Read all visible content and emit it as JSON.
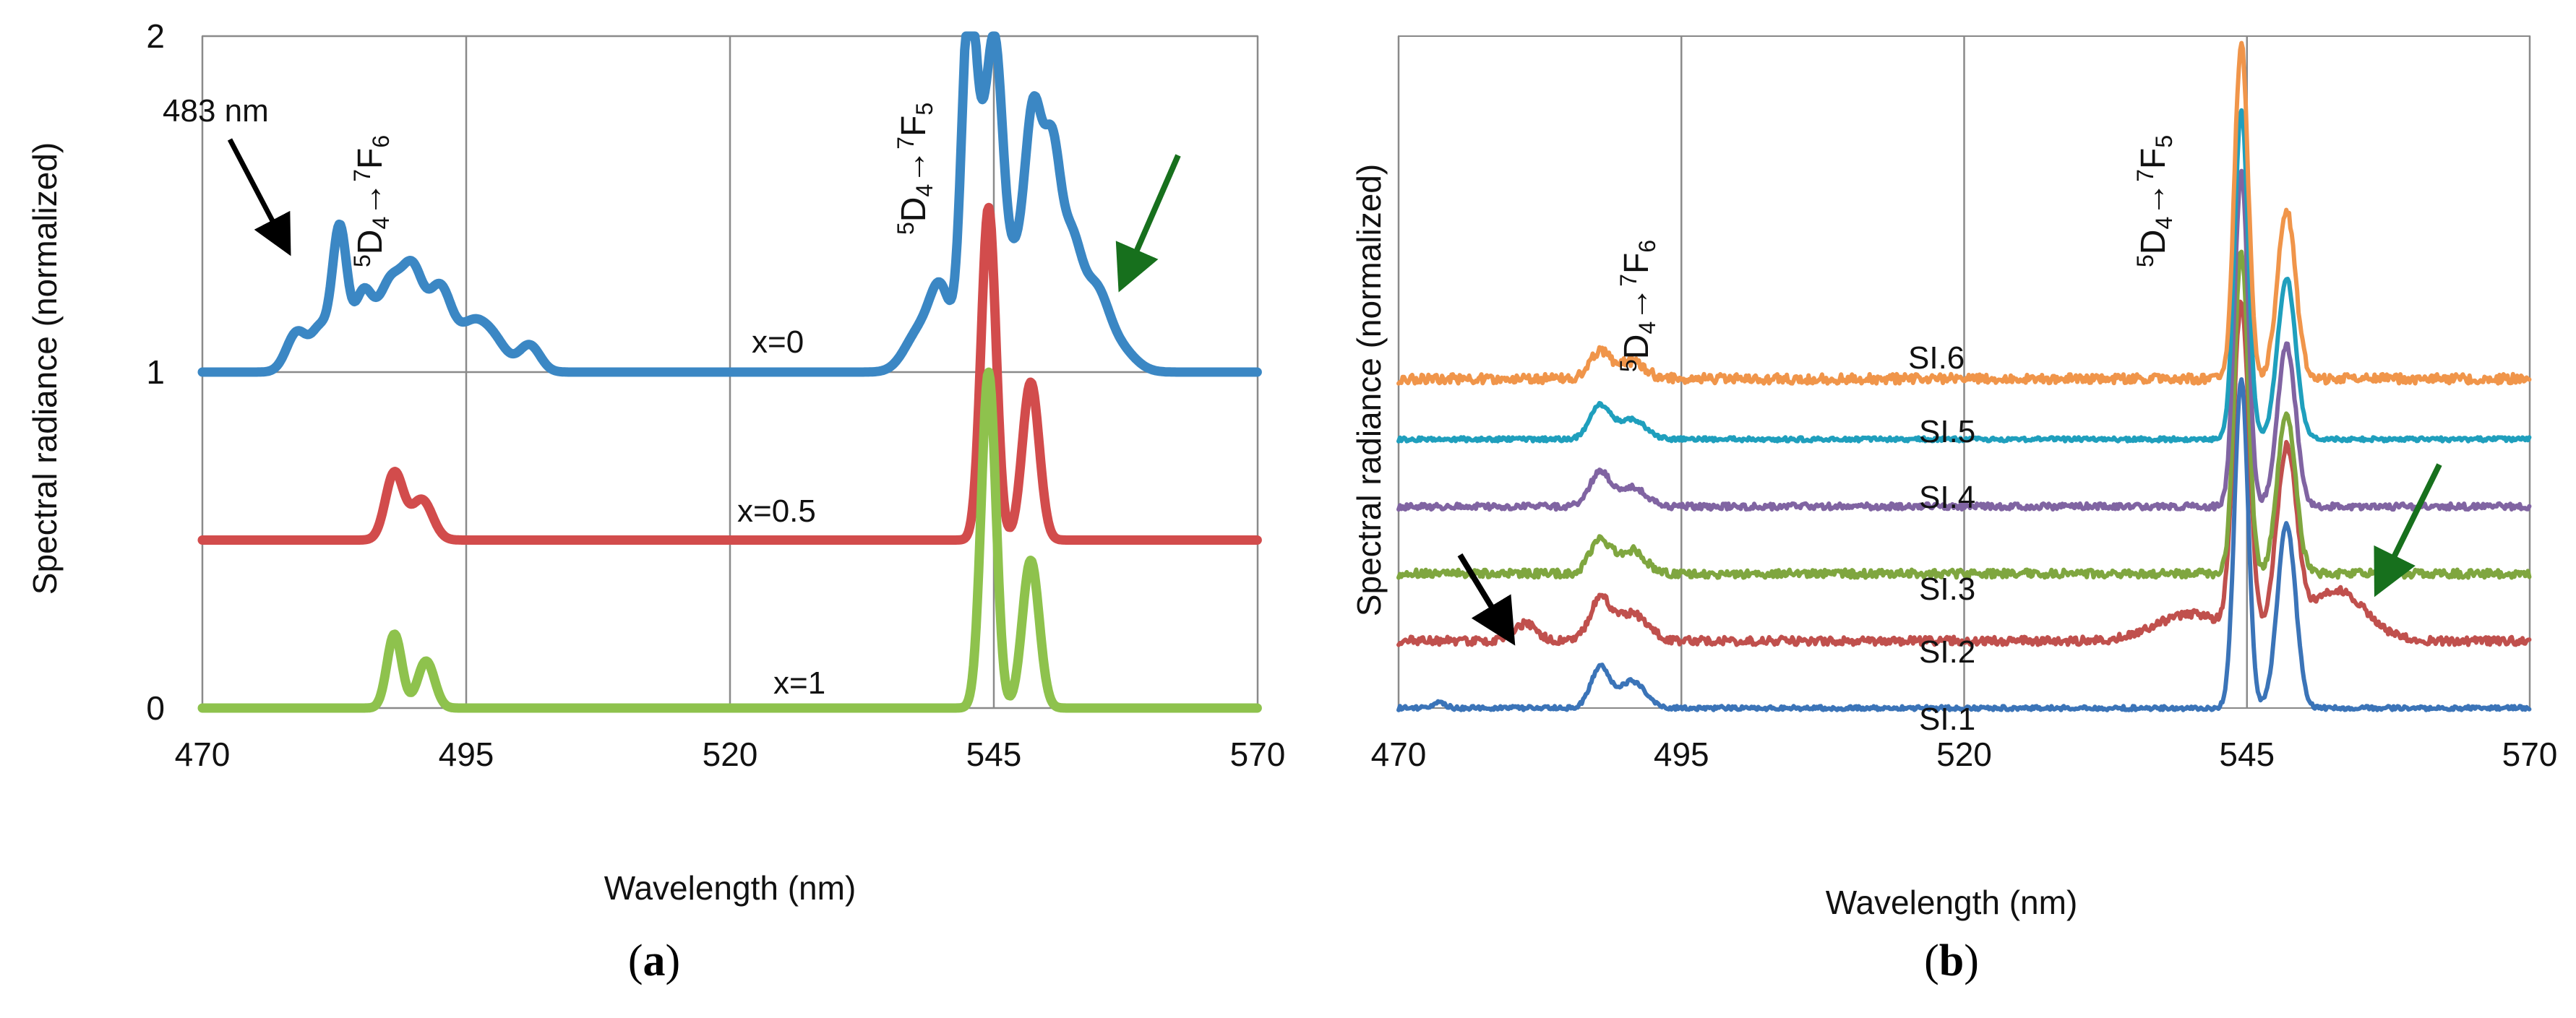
{
  "chart_data": [
    {
      "type": "line",
      "panel_label": "(a)",
      "panel_letter": "a",
      "xlabel": "Wavelength (nm)",
      "ylabel": "Spectral radiance (normalized)",
      "xlim": [
        470,
        570
      ],
      "ylim": [
        0,
        2
      ],
      "x_ticks": [
        "470",
        "495",
        "520",
        "545",
        "570"
      ],
      "y_ticks": [
        "0",
        "1",
        "2"
      ],
      "grid": true,
      "series": [
        {
          "name": "x=0",
          "color": "#3b87c4",
          "offset": 1,
          "peaks": [
            [
              479,
              0.12,
              1.0
            ],
            [
              481.2,
              0.12,
              0.8
            ],
            [
              483,
              0.42,
              0.7
            ],
            [
              485.2,
              0.22,
              0.9
            ],
            [
              487.8,
              0.26,
              1.2
            ],
            [
              490,
              0.26,
              1.0
            ],
            [
              492.5,
              0.24,
              1.1
            ],
            [
              495.6,
              0.14,
              1.4
            ],
            [
              497.8,
              0.07,
              1.2
            ],
            [
              501,
              0.08,
              1.0
            ],
            [
              538,
              0.12,
              1.4
            ],
            [
              540,
              0.22,
              1.0
            ],
            [
              542.6,
              0.98,
              0.7
            ],
            [
              544.2,
              0.54,
              1.0
            ],
            [
              545.2,
              0.52,
              0.7
            ],
            [
              547,
              0.32,
              1.4
            ],
            [
              548.8,
              0.62,
              0.8
            ],
            [
              550.5,
              0.58,
              0.8
            ],
            [
              552.3,
              0.36,
              1.0
            ],
            [
              554.6,
              0.22,
              1.2
            ],
            [
              556.8,
              0.07,
              1.5
            ]
          ]
        },
        {
          "name": "x=0.5",
          "color": "#d24c4c",
          "offset": 0.5,
          "peaks": [
            [
              488.2,
              0.2,
              0.85
            ],
            [
              490.8,
              0.12,
              1.0
            ],
            [
              544.5,
              0.99,
              0.7
            ],
            [
              548.5,
              0.47,
              0.8
            ]
          ]
        },
        {
          "name": "x=1",
          "color": "#8ec24d",
          "offset": 0,
          "peaks": [
            [
              488.2,
              0.22,
              0.7
            ],
            [
              491.2,
              0.14,
              0.8
            ],
            [
              544.5,
              1.0,
              0.7
            ],
            [
              548.5,
              0.44,
              0.8
            ]
          ]
        }
      ],
      "curve_labels": [
        "x=0",
        "x=0.5",
        "x=1"
      ],
      "annotations": {
        "wavelength_label": "483 nm",
        "transition_1": {
          "base": "D",
          "sup1": "5",
          "sub1": "4",
          "arrow": "→",
          "sup2": "7",
          "base2": "F",
          "sub2": "6"
        },
        "transition_2": {
          "base": "D",
          "sup1": "5",
          "sub1": "4",
          "arrow": "→",
          "sup2": "7",
          "base2": "F",
          "sub2": "5"
        }
      }
    },
    {
      "type": "line",
      "panel_label": "(b)",
      "panel_letter": "b",
      "xlabel": "Wavelength (nm)",
      "ylabel": "Spectral radiance (normalized)",
      "xlim": [
        470,
        570
      ],
      "ylim": [
        0,
        2
      ],
      "x_ticks": [
        "470",
        "495",
        "520",
        "545",
        "570"
      ],
      "grid": true,
      "series": [
        {
          "name": "SI.1",
          "color": "#3b74b8",
          "offset": 0,
          "noise": 0.006,
          "peaks": [
            [
              473.5,
              0.015,
              0.6
            ],
            [
              487.8,
              0.12,
              0.8
            ],
            [
              490.6,
              0.08,
              1.2
            ],
            [
              544.5,
              0.98,
              0.6
            ],
            [
              548.5,
              0.55,
              0.8
            ]
          ]
        },
        {
          "name": "SI.2",
          "color": "#c0504d",
          "offset": 0.2,
          "noise": 0.012,
          "peaks": [
            [
              481.2,
              0.05,
              1.0
            ],
            [
              487.8,
              0.12,
              0.9
            ],
            [
              490.6,
              0.08,
              1.4
            ],
            [
              540,
              0.08,
              3.0
            ],
            [
              544.5,
              0.98,
              0.7
            ],
            [
              548.5,
              0.55,
              0.9
            ],
            [
              553,
              0.15,
              2.5
            ]
          ]
        },
        {
          "name": "SI.3",
          "color": "#7fa63f",
          "offset": 0.4,
          "noise": 0.012,
          "peaks": [
            [
              487.8,
              0.1,
              0.9
            ],
            [
              490.6,
              0.07,
              1.2
            ],
            [
              544.5,
              0.96,
              0.6
            ],
            [
              548.5,
              0.48,
              0.8
            ]
          ]
        },
        {
          "name": "SI.4",
          "color": "#8064a2",
          "offset": 0.6,
          "noise": 0.009,
          "peaks": [
            [
              487.8,
              0.1,
              0.9
            ],
            [
              490.6,
              0.06,
              1.2
            ],
            [
              544.5,
              1.0,
              0.6
            ],
            [
              548.5,
              0.48,
              0.8
            ]
          ]
        },
        {
          "name": "SI.5",
          "color": "#1f9fbd",
          "offset": 0.8,
          "noise": 0.006,
          "peaks": [
            [
              487.8,
              0.1,
              0.9
            ],
            [
              490.6,
              0.06,
              1.2
            ],
            [
              544.5,
              0.98,
              0.6
            ],
            [
              548.5,
              0.48,
              0.8
            ]
          ]
        },
        {
          "name": "SI.6",
          "color": "#f0954a",
          "offset": 0.98,
          "noise": 0.014,
          "peaks": [
            [
              487.8,
              0.08,
              0.9
            ],
            [
              490.6,
              0.05,
              1.2
            ],
            [
              544.5,
              1.0,
              0.6
            ],
            [
              548.5,
              0.5,
              0.8
            ]
          ]
        }
      ],
      "curve_labels": [
        "SI.1",
        "SI.2",
        "SI.3",
        "SI.4",
        "SI.5",
        "SI.6"
      ],
      "annotations": {
        "transition_1": {
          "base": "D",
          "sup1": "5",
          "sub1": "4",
          "arrow": "→",
          "sup2": "7",
          "base2": "F",
          "sub2": "6"
        },
        "transition_2": {
          "base": "D",
          "sup1": "5",
          "sub1": "4",
          "arrow": "→",
          "sup2": "7",
          "base2": "F",
          "sub2": "5"
        }
      }
    }
  ]
}
